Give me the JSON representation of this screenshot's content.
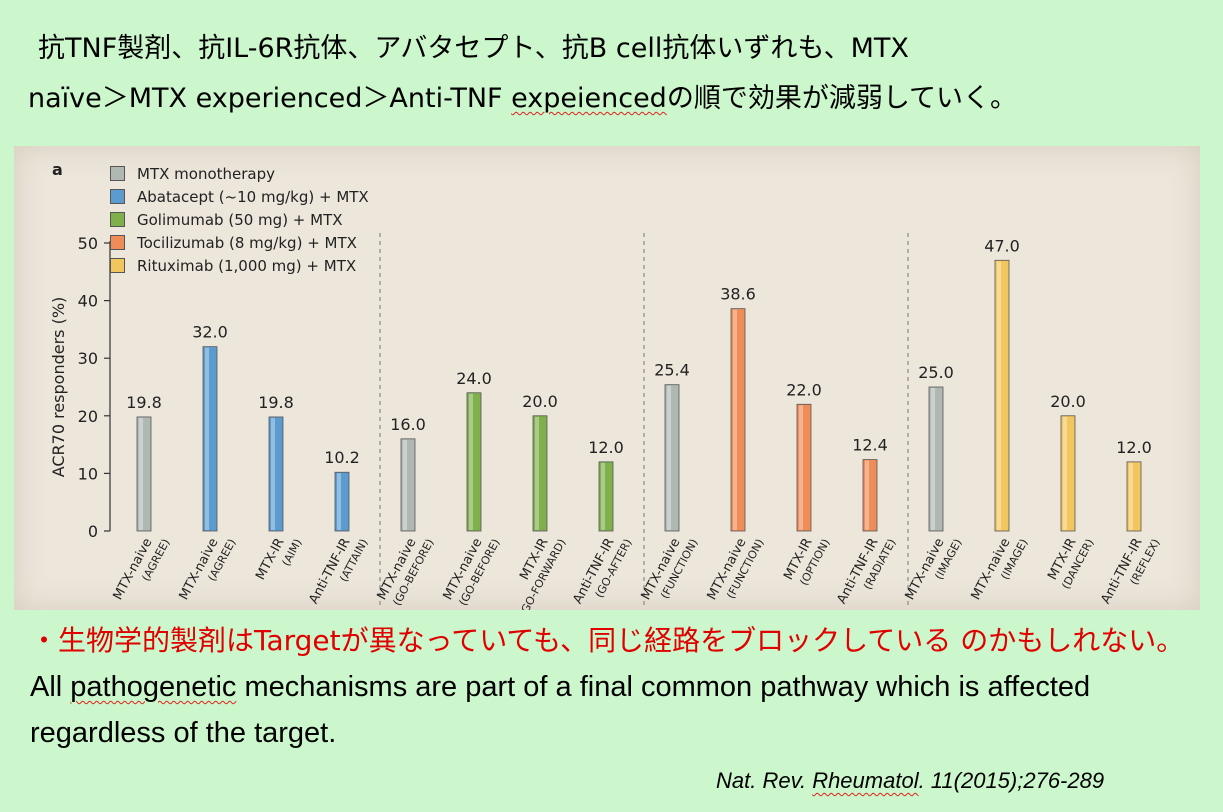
{
  "slide": {
    "title_line1": "抗TNF製剤、抗IL-6R抗体、アバタセプト、抗B cell抗体いずれも、MTX",
    "title_line2a": "naïve＞MTX experienced＞Anti-TNF ",
    "title_line2b": "expeienced",
    "title_line2c": "の順で効果が減弱していく。",
    "bullet_jp": "・生物学的製剤はTargetが異なっていても、同じ経路をブロックしている のかもしれない。",
    "bullet_en_pre": "All ",
    "bullet_en_wavy": "pathogenetic",
    "bullet_en_post": " mechanisms are part of a final common pathway which is affected regardless of the target.",
    "citation_pre": "Nat. Rev. ",
    "citation_wavy": "Rheumatol",
    "citation_post": ". 11(2015);276-289"
  },
  "chart_data": {
    "type": "bar",
    "panel": "a",
    "ylabel": "ACR70 responders (%)",
    "ylim": [
      0,
      50
    ],
    "yticks": [
      0,
      10,
      20,
      30,
      40,
      50
    ],
    "legend": [
      {
        "name": "MTX monotherapy",
        "color": "#b0b8b4"
      },
      {
        "name": "Abatacept (~10 mg/kg) + MTX",
        "color": "#5b9bd0"
      },
      {
        "name": "Golimumab (50 mg) + MTX",
        "color": "#7fb04c"
      },
      {
        "name": "Tocilizumab (8 mg/kg) + MTX",
        "color": "#ef8d58"
      },
      {
        "name": "Rituximab (1,000 mg) + MTX",
        "color": "#f2c65e"
      }
    ],
    "groups": [
      {
        "bars": [
          {
            "line1": "MTX-naive",
            "line2": "(AGREE)",
            "value": 19.8,
            "label": "19.8",
            "color": "#b0b8b4"
          },
          {
            "line1": "MTX-naive",
            "line2": "(AGREE)",
            "value": 32.0,
            "label": "32.0",
            "color": "#5b9bd0"
          },
          {
            "line1": "MTX-IR",
            "line2": "(AIM)",
            "value": 19.8,
            "label": "19.8",
            "color": "#5b9bd0"
          },
          {
            "line1": "Anti-TNF-IR",
            "line2": "(ATTAIN)",
            "value": 10.2,
            "label": "10.2",
            "color": "#5b9bd0"
          }
        ]
      },
      {
        "bars": [
          {
            "line1": "MTX-naive",
            "line2": "(GO-BEFORE)",
            "value": 16.0,
            "label": "16.0",
            "color": "#b0b8b4"
          },
          {
            "line1": "MTX-naive",
            "line2": "(GO-BEFORE)",
            "value": 24.0,
            "label": "24.0",
            "color": "#7fb04c"
          },
          {
            "line1": "MTX-IR",
            "line2": "(GO-FORWARD)",
            "value": 20.0,
            "label": "20.0",
            "color": "#7fb04c"
          },
          {
            "line1": "Anti-TNF-IR",
            "line2": "(GO-AFTER)",
            "value": 12.0,
            "label": "12.0",
            "color": "#7fb04c"
          }
        ]
      },
      {
        "bars": [
          {
            "line1": "MTX-naive",
            "line2": "(FUNCTION)",
            "value": 25.4,
            "label": "25.4",
            "color": "#b0b8b4"
          },
          {
            "line1": "MTX-naive",
            "line2": "(FUNCTION)",
            "value": 38.6,
            "label": "38.6",
            "color": "#ef8d58"
          },
          {
            "line1": "MTX-IR",
            "line2": "(OPTION)",
            "value": 22.0,
            "label": "22.0",
            "color": "#ef8d58"
          },
          {
            "line1": "Anti-TNF-IR",
            "line2": "(RADIATE)",
            "value": 12.4,
            "label": "12.4",
            "color": "#ef8d58"
          }
        ]
      },
      {
        "bars": [
          {
            "line1": "MTX-naive",
            "line2": "(IMAGE)",
            "value": 25.0,
            "label": "25.0",
            "color": "#b0b8b4"
          },
          {
            "line1": "MTX-naive",
            "line2": "(IMAGE)",
            "value": 47.0,
            "label": "47.0",
            "color": "#f2c65e"
          },
          {
            "line1": "MTX-IR",
            "line2": "(DANCER)",
            "value": 20.0,
            "label": "20.0",
            "color": "#f2c65e"
          },
          {
            "line1": "Anti-TNF-IR",
            "line2": "(REFLEX)",
            "value": 12.0,
            "label": "12.0",
            "color": "#f2c65e"
          }
        ]
      }
    ]
  }
}
